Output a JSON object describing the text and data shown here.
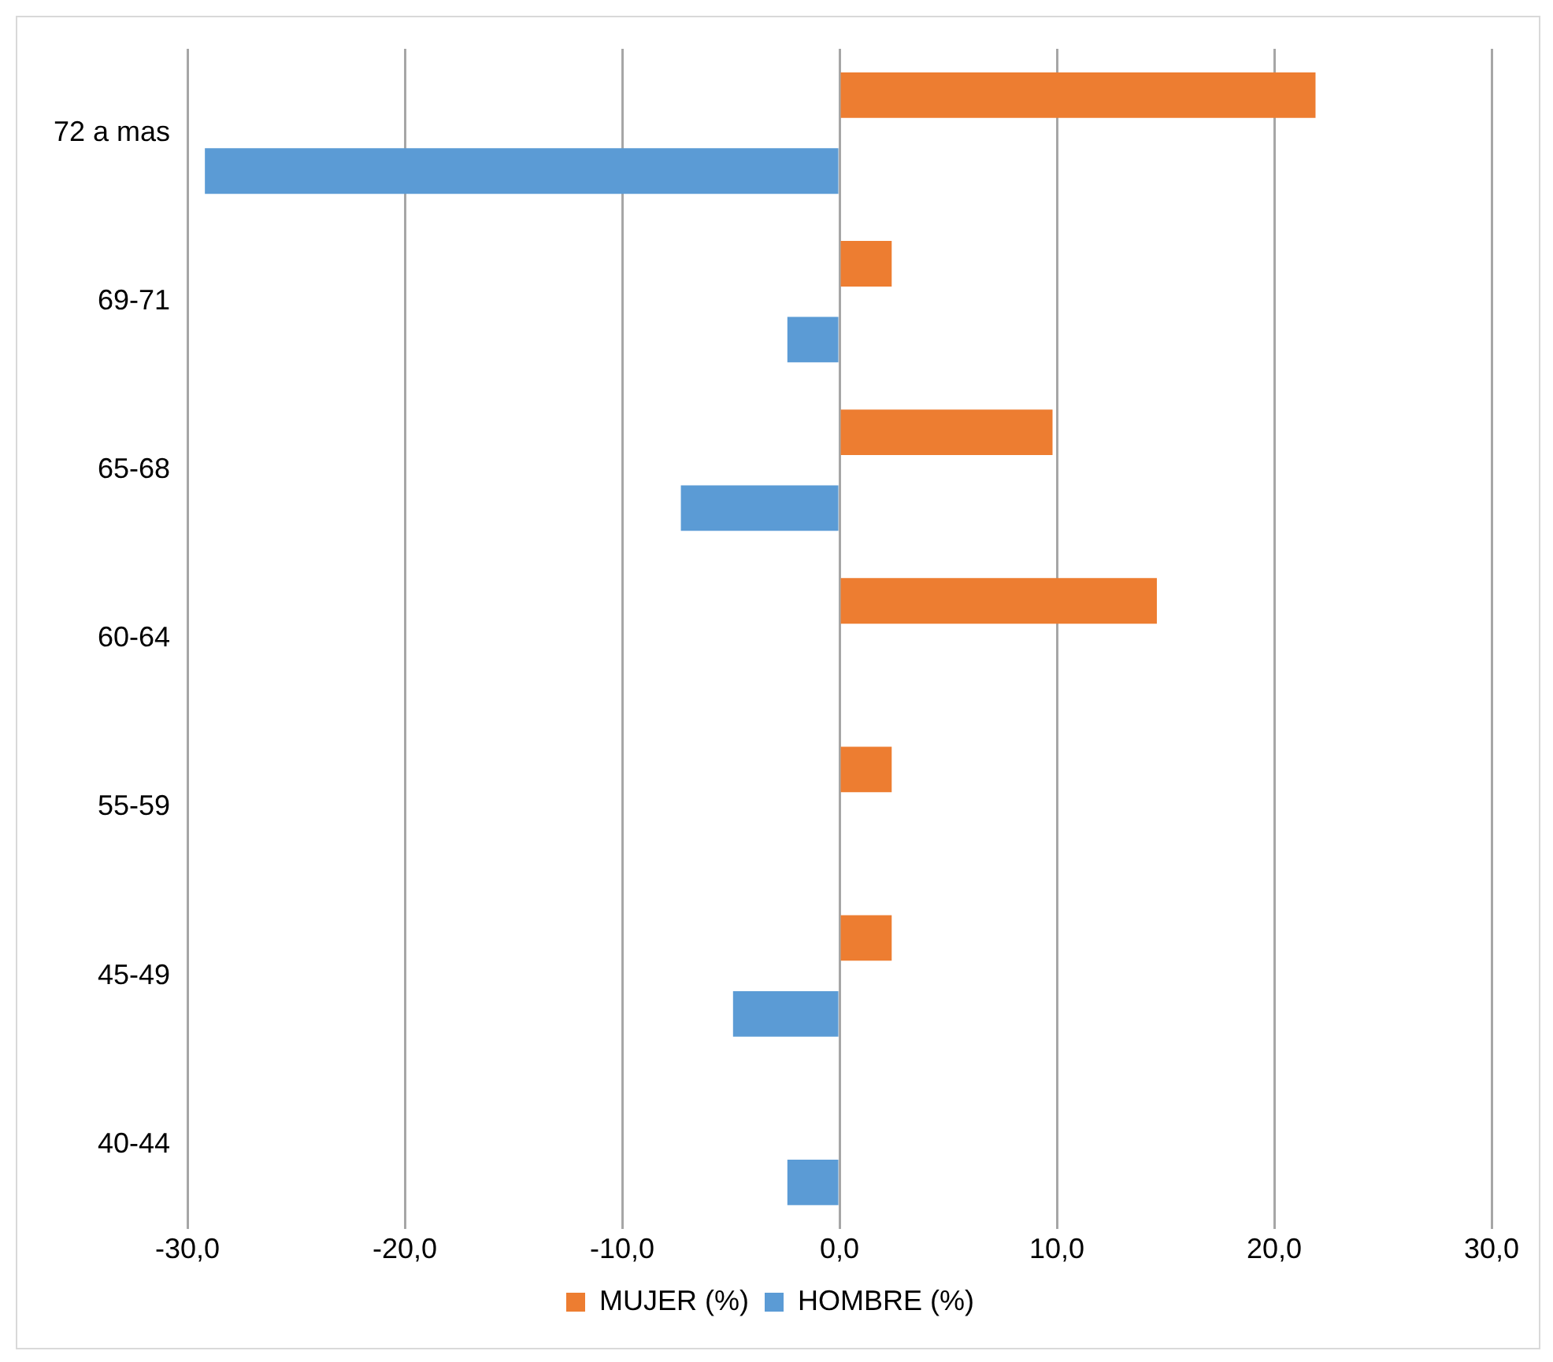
{
  "chart_data": {
    "type": "bar",
    "orientation": "horizontal",
    "categories": [
      "72 a mas",
      "69-71",
      "65-68",
      "60-64",
      "55-59",
      "45-49",
      "40-44"
    ],
    "series": [
      {
        "name": "MUJER (%)",
        "color": "#ed7d31",
        "values": [
          21.9,
          2.4,
          9.8,
          14.6,
          2.4,
          2.4,
          0
        ]
      },
      {
        "name": "HOMBRE (%)",
        "color": "#5b9bd5",
        "values": [
          -29.2,
          -2.4,
          -7.3,
          0,
          0,
          -4.9,
          -2.4
        ]
      }
    ],
    "xlim": [
      -30,
      30
    ],
    "xticks": [
      {
        "value": -30,
        "label": "-30,0"
      },
      {
        "value": -20,
        "label": "-20,0"
      },
      {
        "value": -10,
        "label": "-10,0"
      },
      {
        "value": 0,
        "label": "0,0"
      },
      {
        "value": 10,
        "label": "10,0"
      },
      {
        "value": 20,
        "label": "20,0"
      },
      {
        "value": 30,
        "label": "30,0"
      }
    ],
    "grid": "x",
    "legend": "bottom"
  }
}
